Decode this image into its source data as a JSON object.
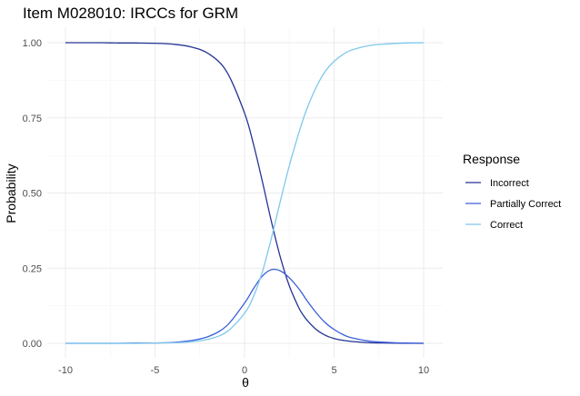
{
  "chart_data": {
    "type": "line",
    "title": "Item M028010: IRCCs for GRM",
    "xlabel": "θ",
    "ylabel": "Probability",
    "xlim": [
      -10,
      10
    ],
    "ylim": [
      0,
      1
    ],
    "x_ticks": [
      -10,
      -5,
      0,
      5,
      10
    ],
    "y_ticks": [
      "0.00",
      "0.25",
      "0.50",
      "0.75",
      "1.00"
    ],
    "grid": true,
    "legend": {
      "title": "Response",
      "position": "right"
    },
    "x": [
      -10,
      -9,
      -8,
      -7,
      -6,
      -5,
      -4,
      -3,
      -2,
      -1,
      0,
      0.5,
      1,
      1.5,
      2,
      2.5,
      3,
      3.25,
      3.5,
      4,
      4.5,
      5,
      5.5,
      6,
      7,
      8,
      9,
      10
    ],
    "series": [
      {
        "name": "Incorrect",
        "color": "#253494",
        "values": [
          1.0,
          1.0,
          1.0,
          0.999,
          0.999,
          0.998,
          0.995,
          0.986,
          0.963,
          0.904,
          0.766,
          0.662,
          0.537,
          0.405,
          0.286,
          0.191,
          0.122,
          0.096,
          0.076,
          0.046,
          0.027,
          0.016,
          0.01,
          0.006,
          0.002,
          0.001,
          0.0,
          0.0
        ]
      },
      {
        "name": "Partially Correct",
        "color": "#3a5fd9",
        "values": [
          0.0,
          0.0,
          0.0,
          0.0,
          0.001,
          0.001,
          0.003,
          0.009,
          0.023,
          0.058,
          0.134,
          0.182,
          0.224,
          0.245,
          0.241,
          0.218,
          0.184,
          0.163,
          0.141,
          0.102,
          0.069,
          0.046,
          0.029,
          0.018,
          0.007,
          0.003,
          0.001,
          0.0
        ]
      },
      {
        "name": "Correct",
        "color": "#7ec8ec",
        "values": [
          0.0,
          0.0,
          0.0,
          0.0,
          0.0,
          0.001,
          0.002,
          0.005,
          0.014,
          0.038,
          0.1,
          0.156,
          0.239,
          0.35,
          0.473,
          0.591,
          0.694,
          0.741,
          0.783,
          0.852,
          0.904,
          0.938,
          0.961,
          0.976,
          0.991,
          0.996,
          0.999,
          1.0
        ]
      }
    ]
  }
}
